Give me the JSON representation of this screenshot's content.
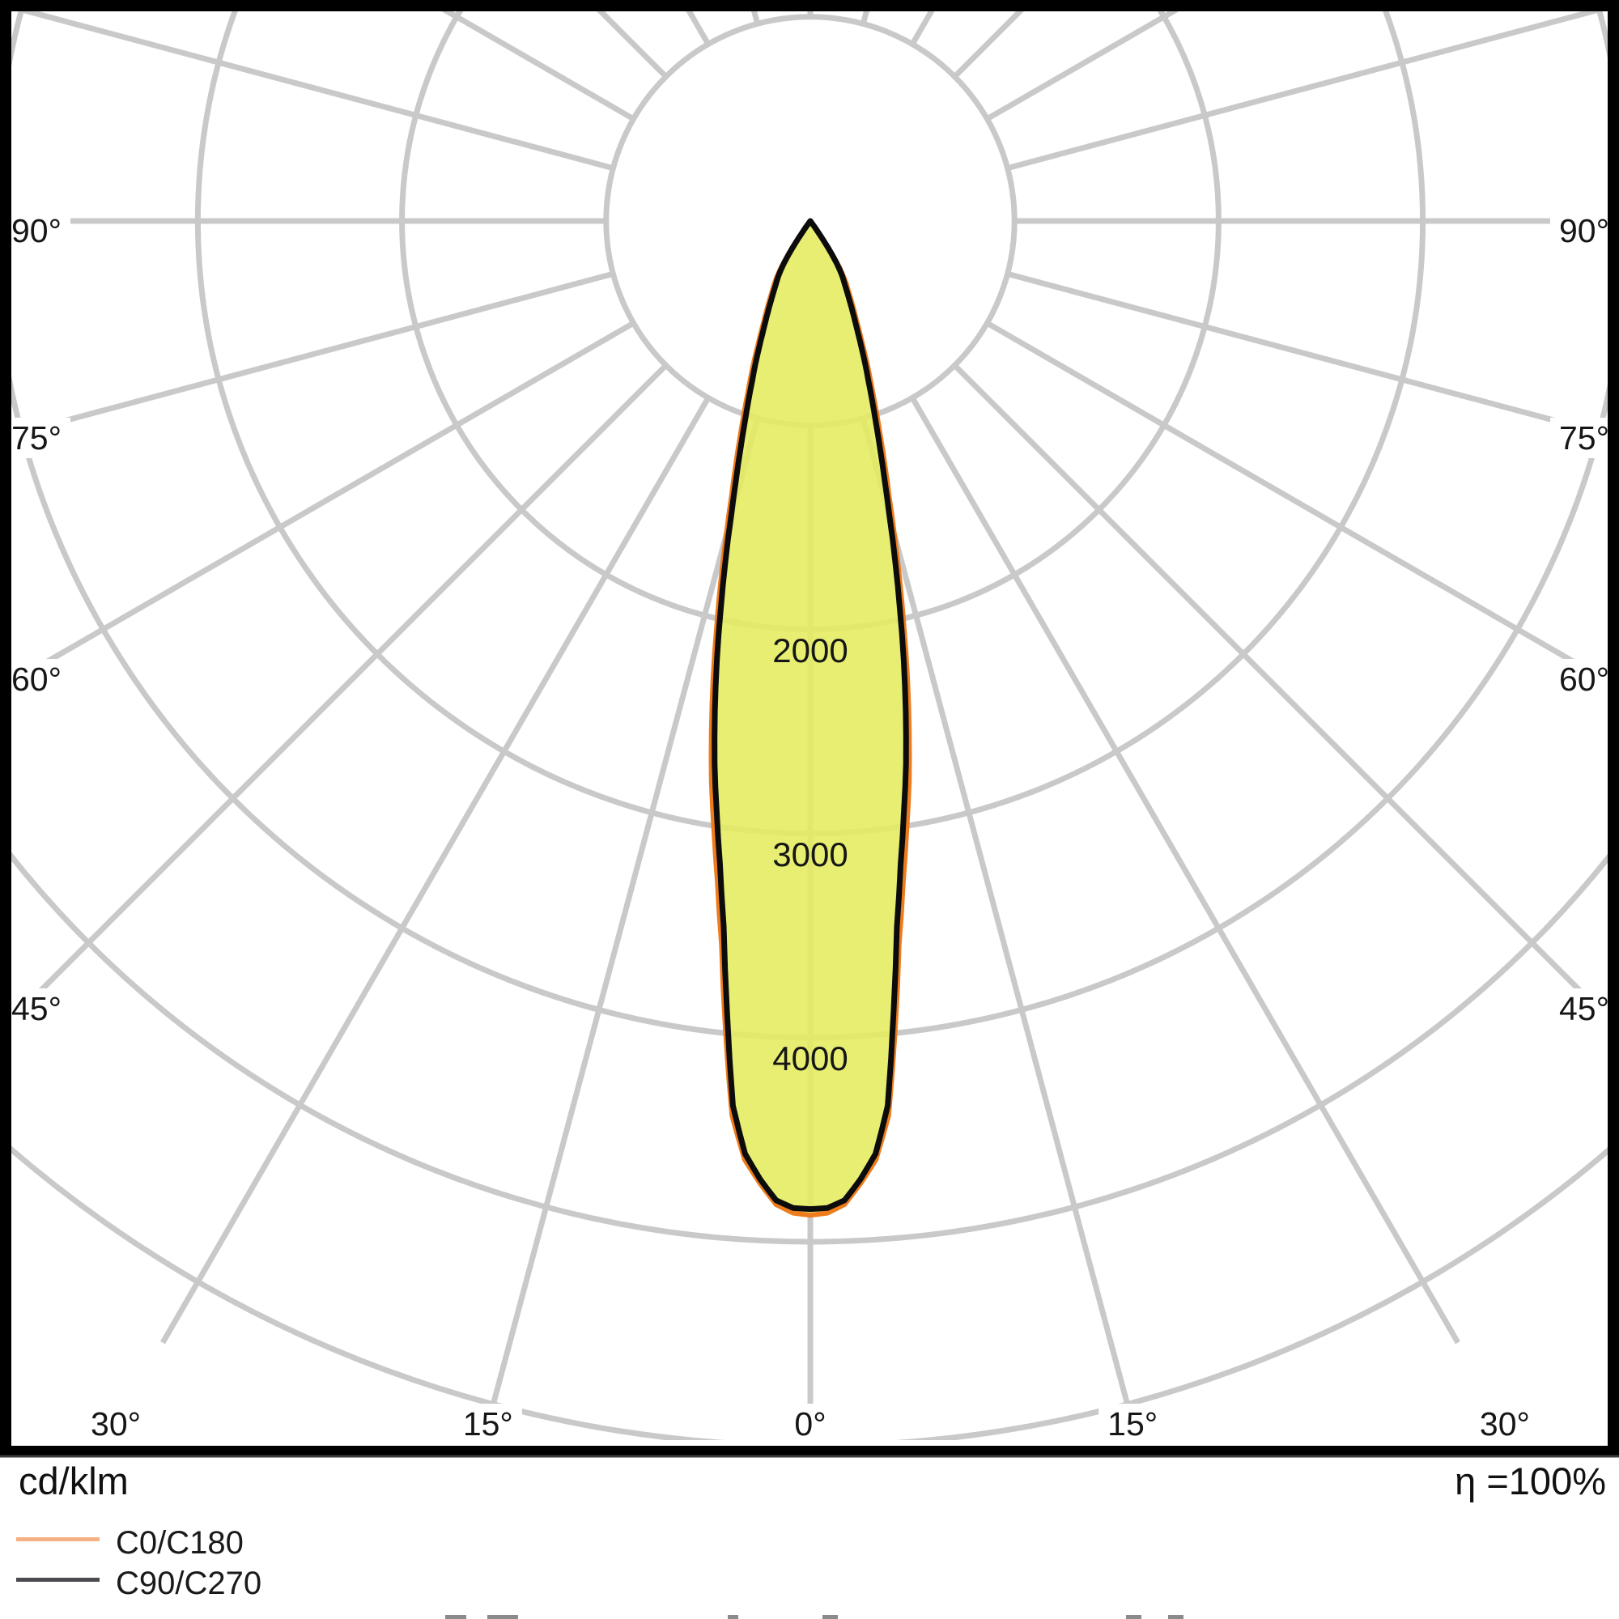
{
  "chart": {
    "unit_label": "cd/klm",
    "efficiency_label": "η =100%",
    "legend": [
      {
        "label": "C0/C180",
        "swatch_color": "#f5b084"
      },
      {
        "label": "C90/C270",
        "swatch_color": "#4a4a50"
      }
    ],
    "colors": {
      "grid": "#c9c9c9",
      "frame": "#000000",
      "sub_frame_line": "#3a3a3a",
      "beam_fill": "#e4ec5e",
      "c0_curve": "#ee7c1c",
      "c90_curve": "#0c0c0c",
      "label_text": "#161616",
      "background": "#ffffff"
    }
  },
  "chart_data": {
    "type": "line",
    "subtype": "polar-photometric",
    "title": "",
    "units": "cd/klm",
    "efficiency": "η =100%",
    "angle_grid_step_deg": 15,
    "angle_tick_labels_side_deg": [
      90,
      75,
      60,
      45
    ],
    "angle_tick_labels_bottom_deg": [
      30,
      15,
      0,
      15,
      30
    ],
    "degree_symbol": "°",
    "radial_grid_circles": [
      1000,
      2000,
      3000,
      4000,
      5000,
      6000
    ],
    "radial_tick_labels": [
      2000,
      3000,
      4000
    ],
    "radial_max_visible": 6000,
    "peak_intensity_cd_klm": 4870,
    "legend_position": "bottom-left",
    "grid": true,
    "series": [
      {
        "name": "C0/C180",
        "color": "#ee7c1c",
        "gamma_deg": [
          0,
          1,
          2,
          3,
          4,
          5,
          6,
          7,
          8,
          9,
          10,
          11,
          12,
          13,
          14,
          15,
          16,
          17,
          18,
          19,
          20,
          21,
          22,
          23,
          24,
          25,
          26,
          27,
          28,
          29,
          30,
          31,
          32,
          33,
          34,
          35,
          36,
          37,
          38
        ],
        "values": [
          4870,
          4860,
          4820,
          4720,
          4610,
          4400,
          3980,
          3570,
          3270,
          3020,
          2790,
          2540,
          2290,
          2040,
          1810,
          1590,
          1400,
          1250,
          1115,
          1000,
          895,
          810,
          730,
          655,
          590,
          535,
          490,
          448,
          410,
          378,
          350,
          315,
          272,
          220,
          158,
          95,
          40,
          10,
          0
        ]
      },
      {
        "name": "C90/C270",
        "color": "#0c0c0c",
        "gamma_deg": [
          0,
          1,
          2,
          3,
          4,
          5,
          6,
          7,
          8,
          9,
          10,
          11,
          12,
          13,
          14,
          15,
          16,
          17,
          18,
          19,
          20,
          21,
          22,
          23,
          24,
          25,
          26,
          27,
          28,
          29,
          30,
          31,
          32,
          33,
          34,
          35,
          36,
          37
        ],
        "values": [
          4840,
          4835,
          4800,
          4700,
          4580,
          4350,
          3900,
          3480,
          3180,
          2930,
          2700,
          2450,
          2200,
          1950,
          1720,
          1500,
          1320,
          1170,
          1040,
          930,
          830,
          750,
          670,
          600,
          540,
          490,
          445,
          405,
          370,
          340,
          315,
          280,
          240,
          190,
          130,
          70,
          20,
          0
        ]
      }
    ]
  },
  "bottom_artifacts_x": [
    [
      550,
      576
    ],
    [
      602,
      640
    ],
    [
      899,
      912
    ],
    [
      1016,
      1035
    ],
    [
      1391,
      1410
    ],
    [
      1443,
      1462
    ]
  ]
}
